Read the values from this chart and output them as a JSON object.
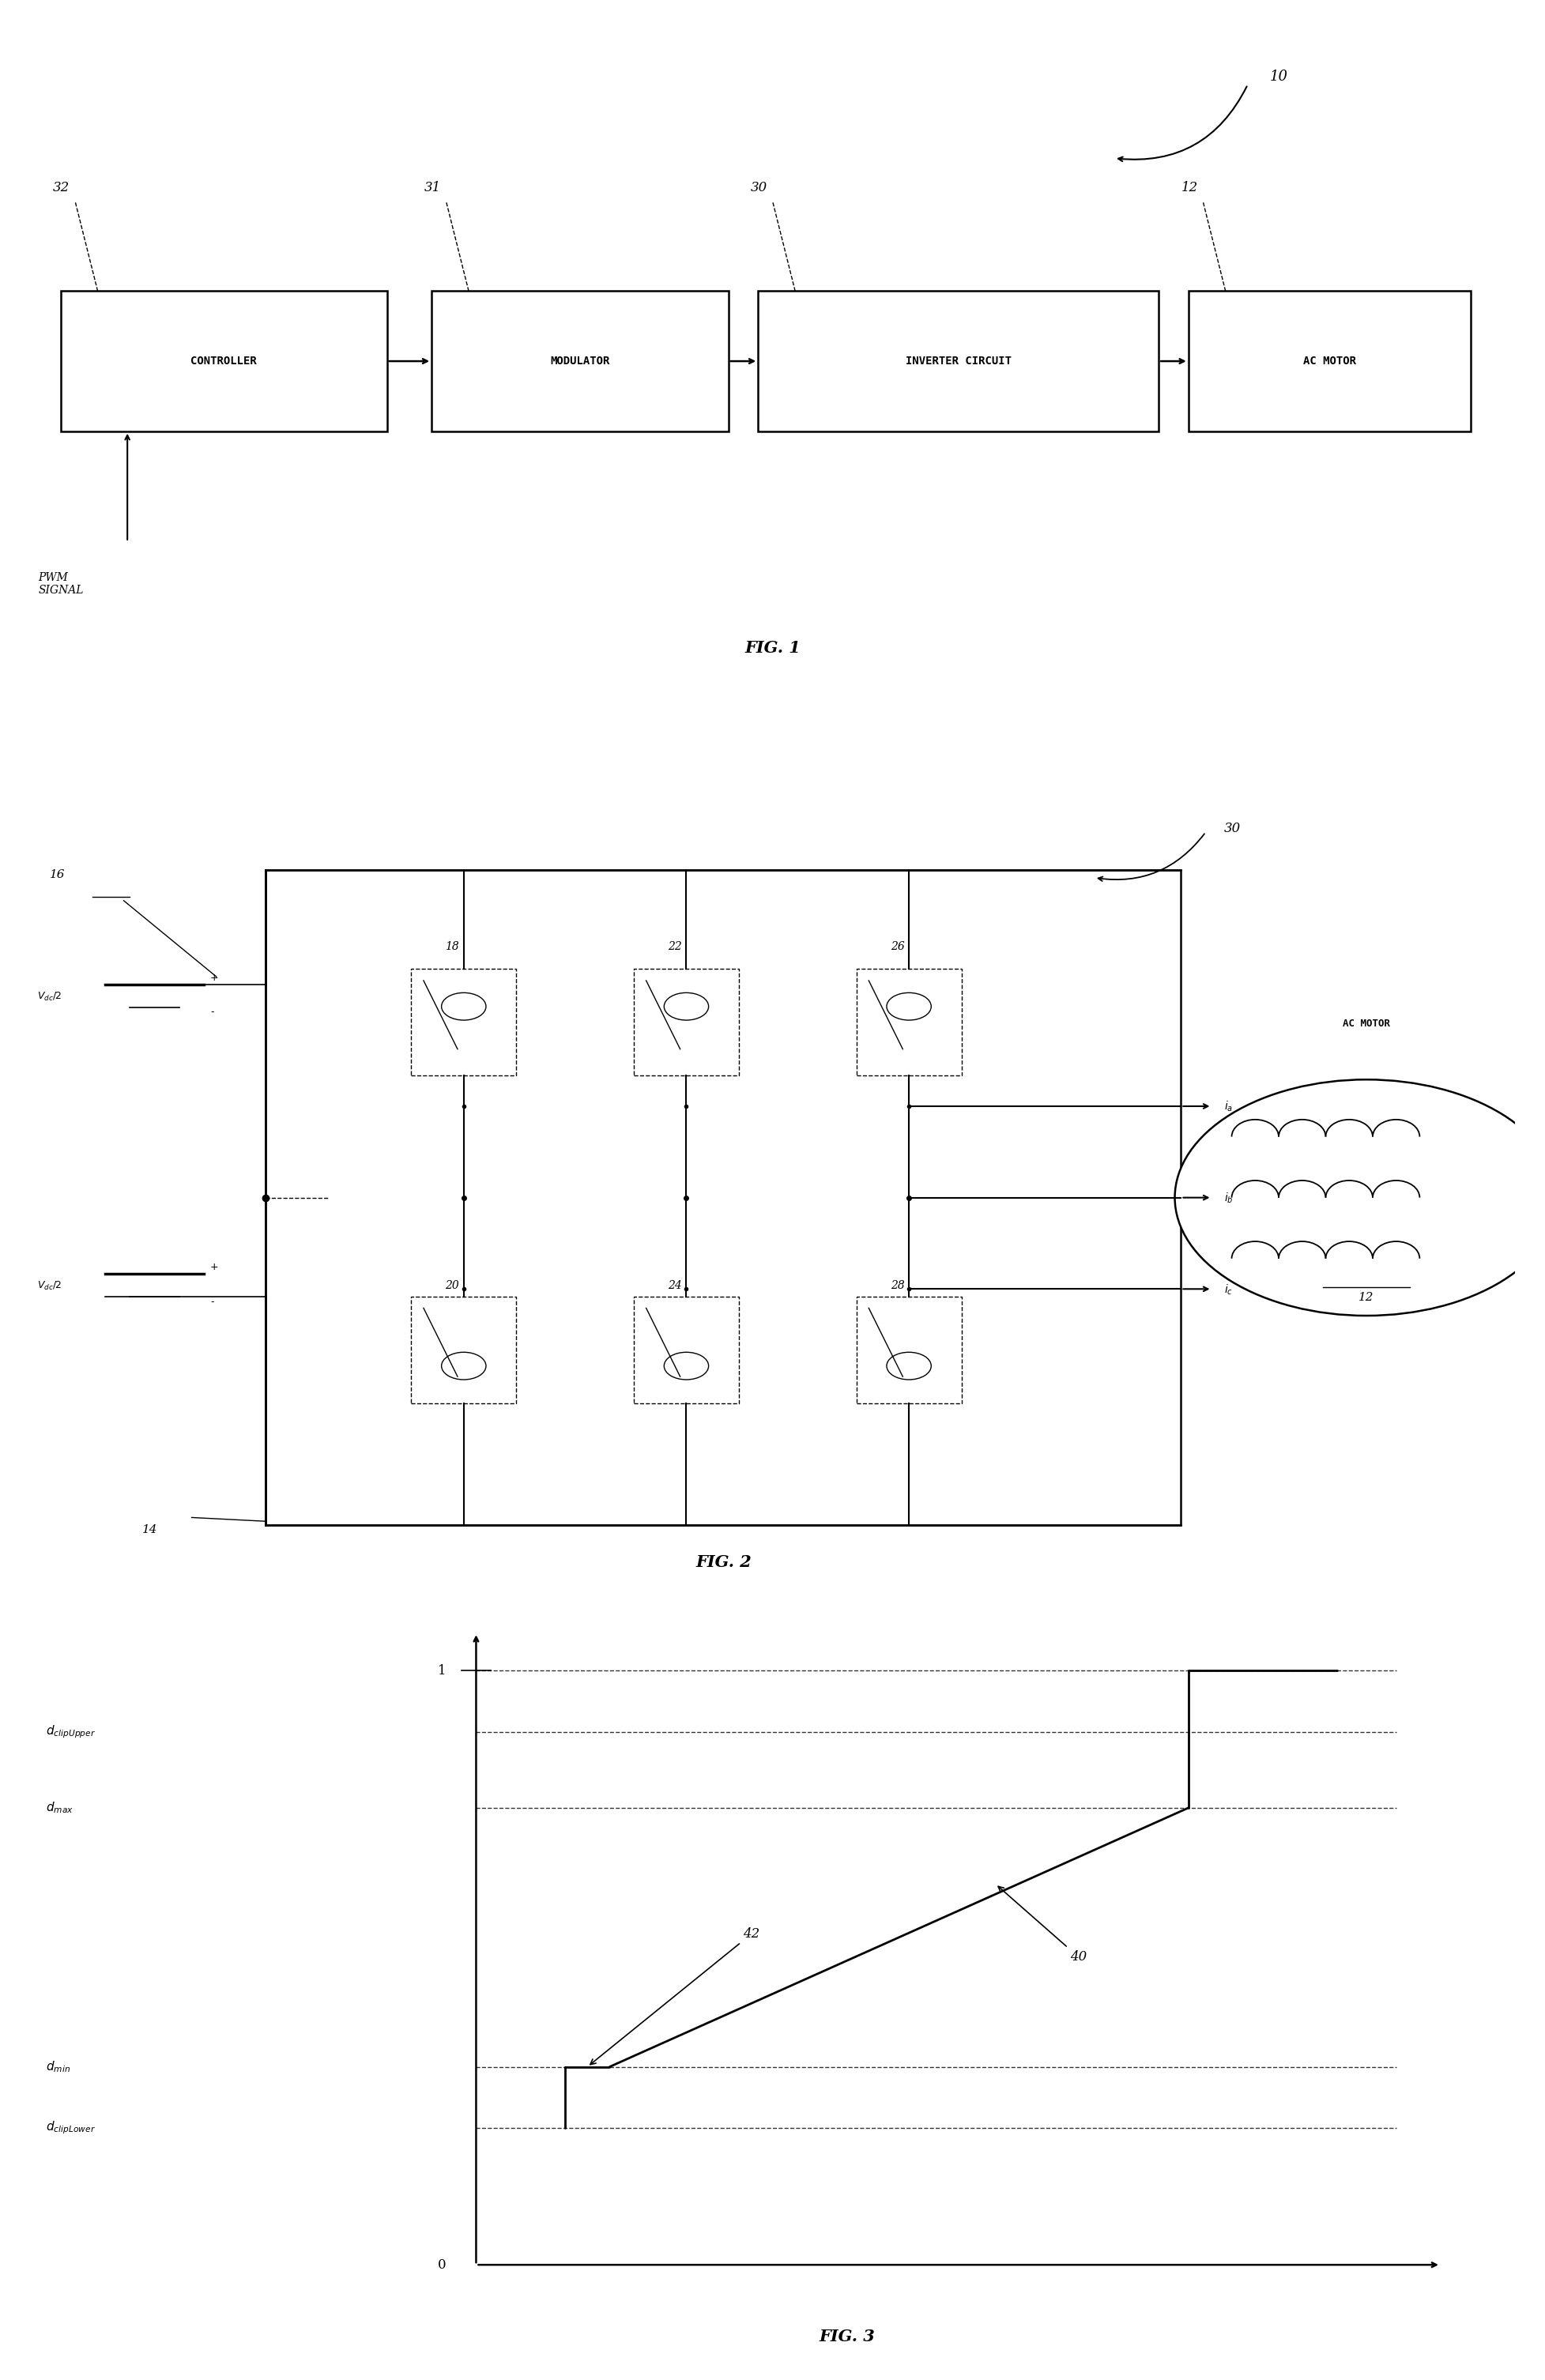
{
  "fig1": {
    "title": "FIG. 1",
    "ref_10": "10",
    "ref_32": "32",
    "ref_31": "31",
    "ref_30": "30",
    "ref_12": "12",
    "box_labels": [
      "CONTROLLER",
      "MODULATOR",
      "INVERTER CIRCUIT",
      "AC MOTOR"
    ],
    "pwm_label": "PWM\nSIGNAL"
  },
  "fig2": {
    "title": "FIG. 2",
    "ref_30": "30",
    "ref_16": "16",
    "ref_14": "14",
    "ref_18": "18",
    "ref_20": "20",
    "ref_22": "22",
    "ref_24": "24",
    "ref_26": "26",
    "ref_28": "28",
    "ref_12": "12",
    "ac_motor": "AC MOTOR"
  },
  "fig3": {
    "title": "FIG. 3",
    "label_40": "40",
    "label_42": "42",
    "y_one": "1",
    "y_zero": "0",
    "d_clipUpper": "d_clipUpper",
    "d_max": "d_max",
    "d_min": "d_min",
    "d_clipLower": "d_clipLower"
  },
  "background": "#ffffff",
  "line_color": "#000000"
}
